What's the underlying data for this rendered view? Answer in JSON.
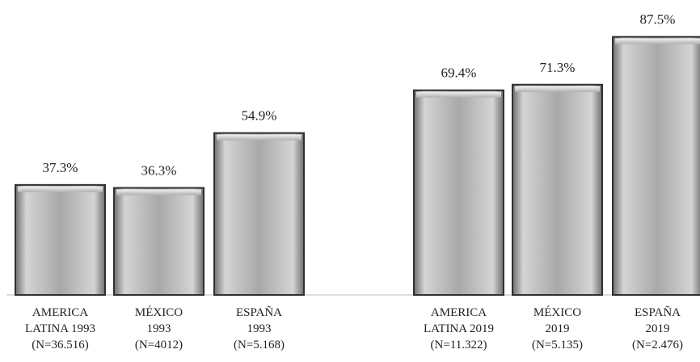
{
  "chart_data": {
    "type": "bar",
    "categories": [
      [
        "AMERICA",
        "LATINA 1993",
        "(N=36.516)"
      ],
      [
        "MÉXICO",
        "1993",
        "(N=4012)"
      ],
      [
        "ESPAÑA",
        "1993",
        "(N=5.168)"
      ],
      [
        "AMERICA",
        "LATINA 2019",
        "(N=11.322)"
      ],
      [
        "MÉXICO",
        "2019",
        "(N=5.135)"
      ],
      [
        "ESPAÑA",
        "2019",
        "(N=2.476)"
      ]
    ],
    "values": [
      37.3,
      36.3,
      54.9,
      69.4,
      71.3,
      87.5
    ],
    "value_labels": [
      "37.3%",
      "36.3%",
      "54.9%",
      "69.4%",
      "71.3%",
      "87.5%"
    ],
    "ylim": [
      0,
      100
    ],
    "grid": false,
    "colors": {
      "bar": "#a9a9a9",
      "bar_light": "#d4d4d4",
      "bar_dark": "#6f6f6f",
      "border": "#2f2f2f"
    }
  }
}
